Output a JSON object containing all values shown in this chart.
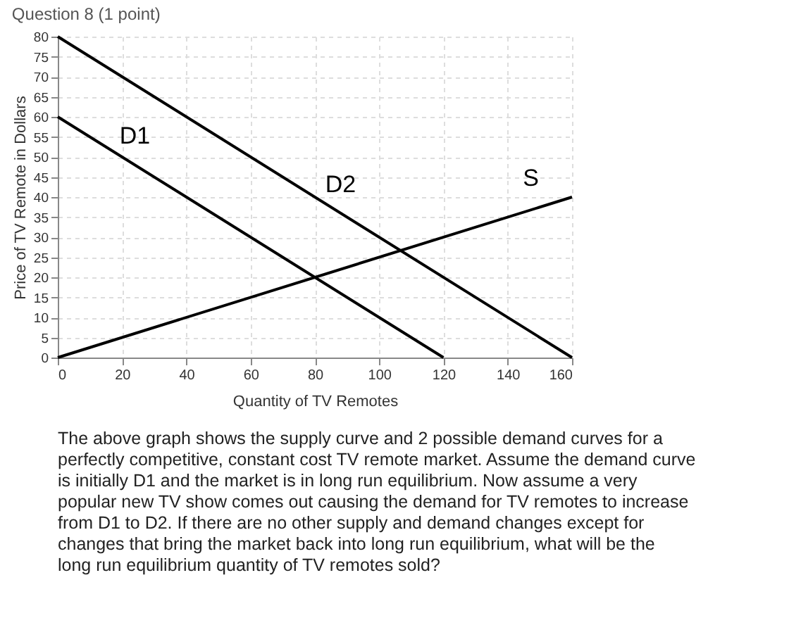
{
  "chart_data": {
    "type": "line",
    "title": "Question 8 (1 point)",
    "xlabel": "Quantity of TV Remotes",
    "ylabel": "Price of TV Remote in Dollars",
    "xlim": [
      0,
      160
    ],
    "xticks": [
      0,
      20,
      40,
      60,
      80,
      100,
      120,
      140,
      160
    ],
    "ylim": [
      0,
      80
    ],
    "yticks": [
      0,
      5,
      10,
      15,
      20,
      25,
      30,
      35,
      40,
      45,
      50,
      55,
      60,
      65,
      70,
      75,
      80
    ],
    "grid": true,
    "legend": false,
    "marker": "none",
    "line_style": "solid",
    "series": [
      {
        "name": "D1",
        "color": "#000000",
        "x": [
          0,
          120
        ],
        "values": [
          60,
          0
        ]
      },
      {
        "name": "D2",
        "color": "#000000",
        "x": [
          0,
          160
        ],
        "values": [
          80,
          0
        ]
      },
      {
        "name": "S",
        "color": "#000000",
        "x": [
          0,
          160
        ],
        "values": [
          0,
          40
        ]
      }
    ],
    "annotations": [
      "The above graph shows the supply curve and 2 possible demand curves for a perfectly competitive, constant cost TV remote market. Assume the demand curve is initially D1 and the market is in long run equilibrium. Now assume a very popular new TV show comes out causing the demand for TV remotes to increase from D1 to D2. If there are no other supply and demand changes except for changes that bring the market back into long run equilibrium, what will be the long run equilibrium quantity of TV remotes sold?"
    ]
  }
}
